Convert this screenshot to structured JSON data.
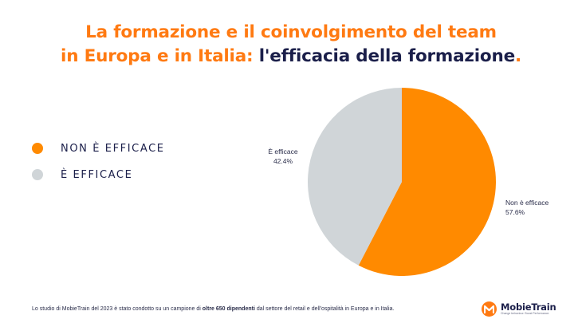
{
  "header": {
    "title_line1": "La formazione e il coinvolgimento del team",
    "title_line2_orange": "in Europa e in Italia:",
    "title_line2_navy": "l'efficacia della formazione",
    "title_period": "."
  },
  "legend": {
    "items": [
      {
        "label": "NON È EFFICACE",
        "color": "#ff8a00"
      },
      {
        "label": "È EFFICACE",
        "color": "#d0d5d8"
      }
    ]
  },
  "chart_data": {
    "type": "pie",
    "title": "l'efficacia della formazione",
    "start": "12 o'clock, clockwise",
    "slices": [
      {
        "label": "Non è efficace",
        "value": 57.6,
        "display": "57.6%",
        "color": "#ff8a00"
      },
      {
        "label": "È efficace",
        "value": 42.4,
        "display": "42.4%",
        "color": "#d0d5d8"
      }
    ],
    "legend_position": "left"
  },
  "footer": {
    "note_part1": "Lo studio di MobieTrain del 2023 è stato condotto su un campione di ",
    "note_bold": "oltre 650 dipendenti",
    "note_part2": " dal settore del retail e dell'ospitalità in Europa e in Italia.",
    "logo_name": "MobieTrain",
    "logo_tagline": "Change behaviour. Boost Performance.",
    "logo_letter": "M"
  },
  "colors": {
    "accent": "#ff7a12",
    "navy": "#1b1f4a"
  }
}
